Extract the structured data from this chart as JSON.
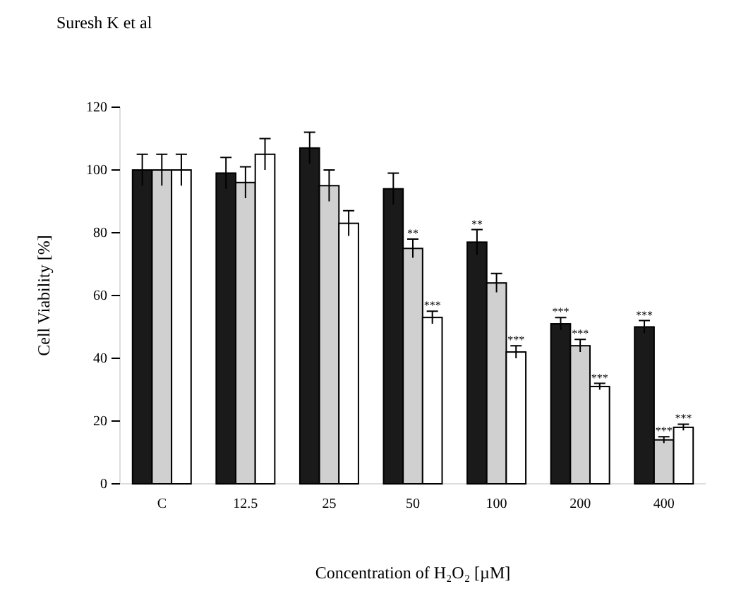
{
  "chart_data": {
    "type": "bar",
    "title": "Suresh K et al",
    "xlabel": "Concentration of H₂O₂ [µM]",
    "ylabel": "Cell Viability [%]",
    "categories": [
      "C",
      "12.5",
      "25",
      "50",
      "100",
      "200",
      "400"
    ],
    "series": [
      {
        "color": "#1a1a1a",
        "values": [
          100,
          99,
          107,
          94,
          77,
          51,
          50
        ],
        "errors": [
          5,
          5,
          5,
          5,
          4,
          2,
          2
        ],
        "value_labels": [
          null,
          null,
          null,
          null,
          "**",
          "***",
          "***"
        ]
      },
      {
        "color": "#d0d0d0",
        "values": [
          100,
          96,
          95,
          75,
          64,
          44,
          14
        ],
        "errors": [
          5,
          5,
          5,
          3,
          3,
          2,
          1
        ],
        "value_labels": [
          null,
          null,
          null,
          "**",
          null,
          "***",
          "***"
        ]
      },
      {
        "color": "#ffffff",
        "values": [
          100,
          105,
          83,
          53,
          42,
          31,
          18
        ],
        "errors": [
          5,
          5,
          4,
          2,
          2,
          1,
          1
        ],
        "value_labels": [
          null,
          null,
          null,
          "***",
          "***",
          "***",
          "***"
        ]
      }
    ],
    "ylim": [
      0,
      120
    ],
    "yticks": [
      0,
      20,
      40,
      60,
      80,
      100,
      120
    ],
    "grid": false
  }
}
